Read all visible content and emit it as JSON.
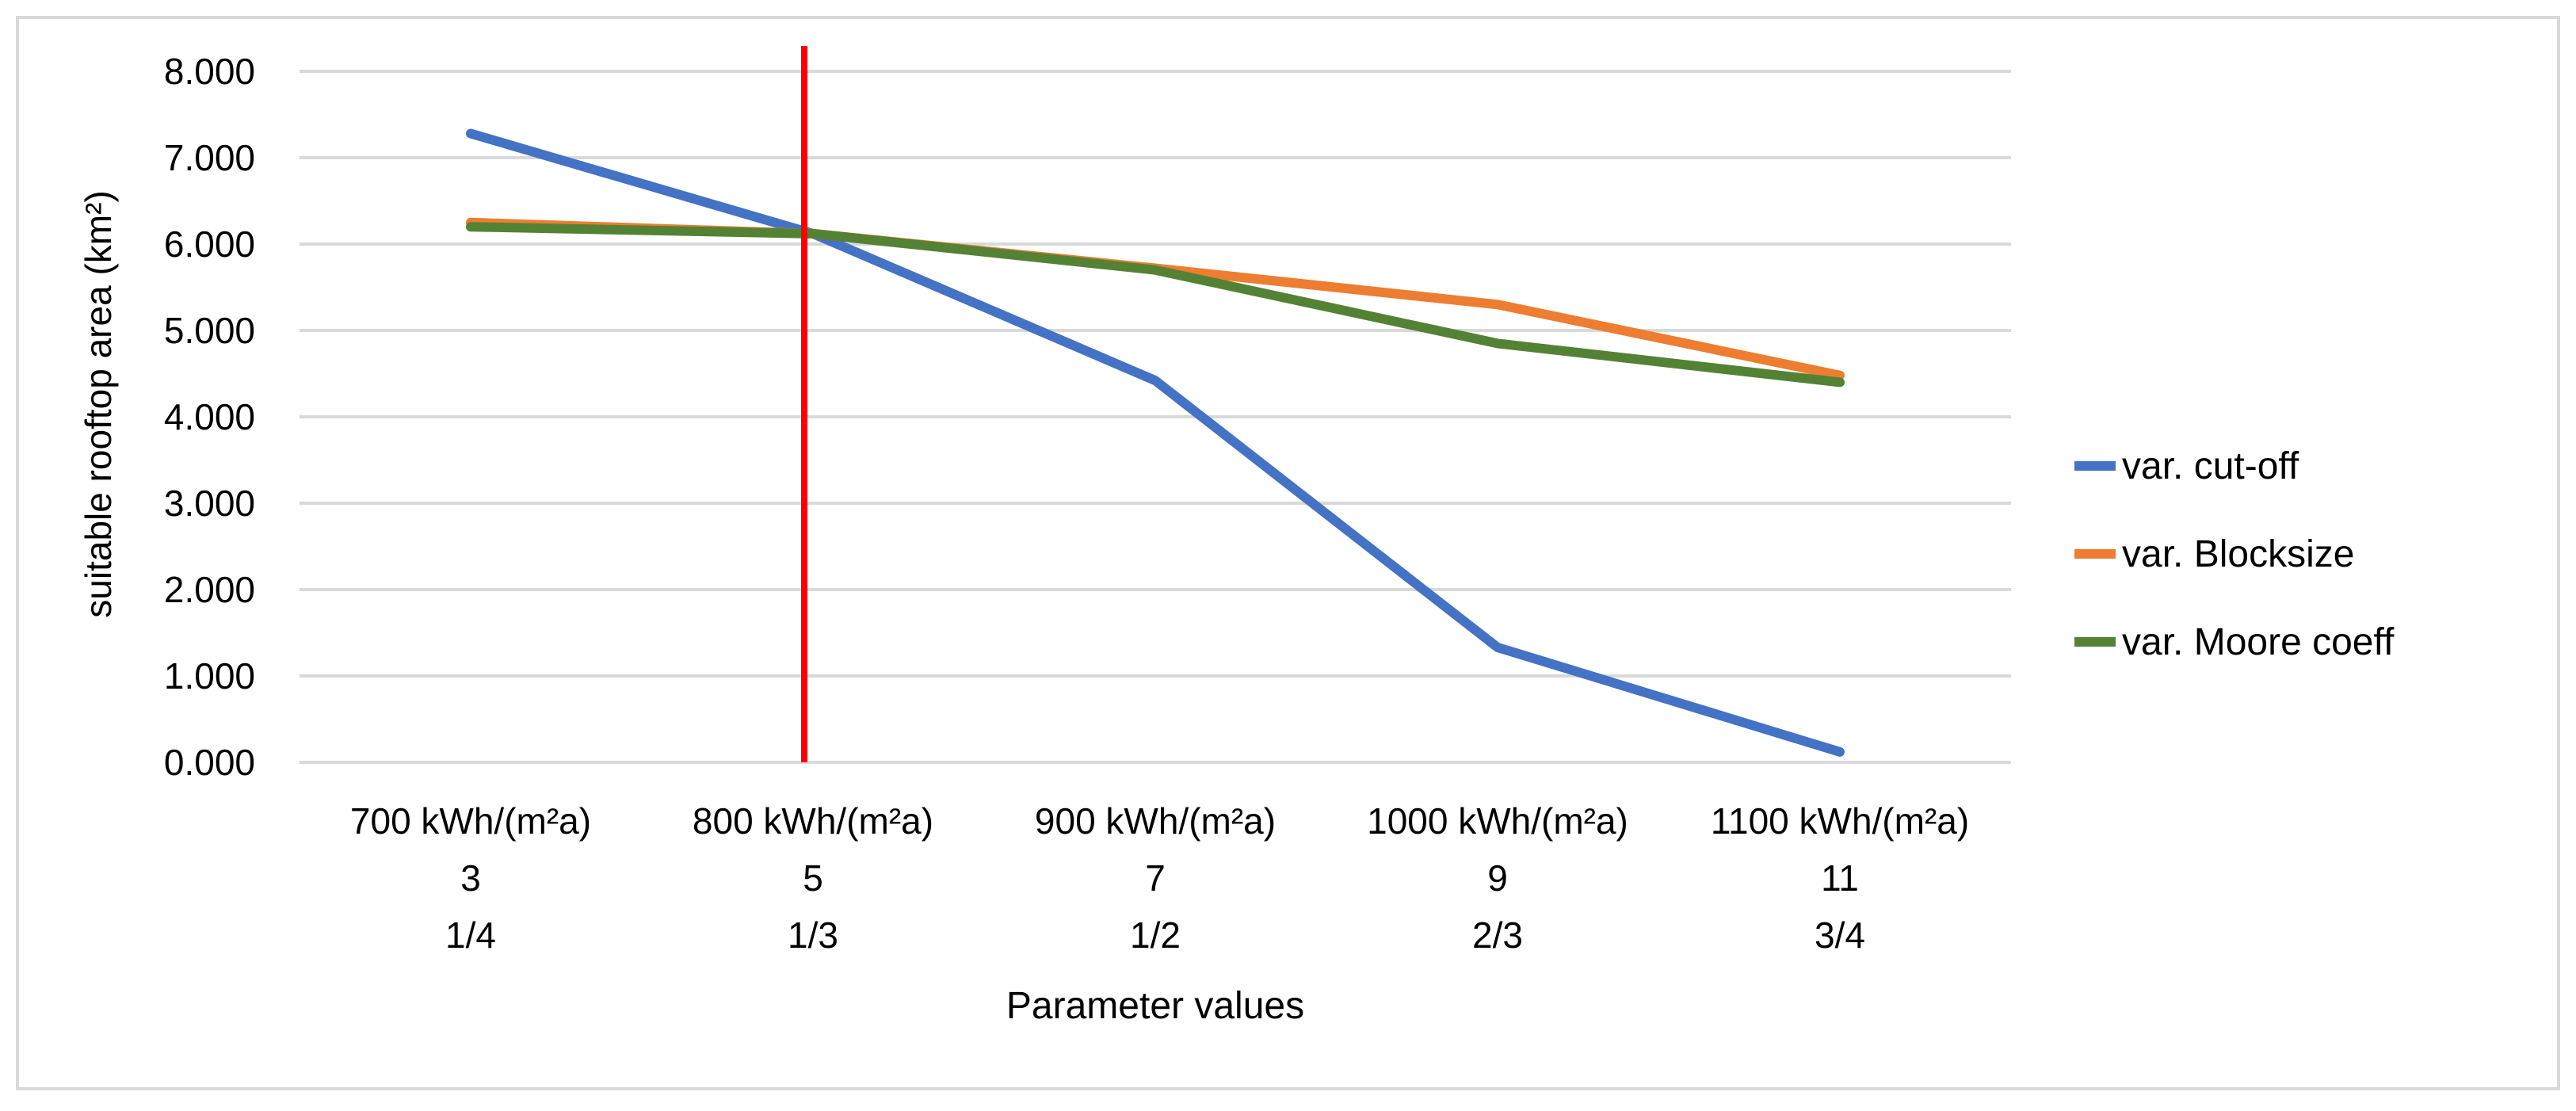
{
  "chart_data": {
    "type": "line",
    "title": "",
    "xlabel": "Parameter values",
    "ylabel": "suitable rooftop area (km²)",
    "ylim": [
      0,
      8
    ],
    "yticks": [
      "0.000",
      "1.000",
      "2.000",
      "3.000",
      "4.000",
      "5.000",
      "6.000",
      "7.000",
      "8.000"
    ],
    "grid": true,
    "legend_position": "right",
    "categories": [
      [
        "700 kWh/(m²a)",
        "3",
        "1/4"
      ],
      [
        "800 kWh/(m²a)",
        "5",
        "1/3"
      ],
      [
        "900 kWh/(m²a)",
        "7",
        "1/2"
      ],
      [
        "1000 kWh/(m²a)",
        "9",
        "2/3"
      ],
      [
        "1100 kWh/(m²a)",
        "11",
        "3/4"
      ]
    ],
    "series": [
      {
        "name": "var. cut-off",
        "color": "#4472C4",
        "values": [
          7.28,
          6.12,
          4.42,
          1.33,
          0.12
        ]
      },
      {
        "name": "var. Blocksize",
        "color": "#ED7D31",
        "values": [
          6.25,
          6.12,
          5.72,
          5.3,
          4.48
        ]
      },
      {
        "name": "var. Moore coeff",
        "color": "#548235",
        "values": [
          6.2,
          6.12,
          5.7,
          4.85,
          4.4
        ]
      }
    ],
    "reference_line": {
      "category_index": 1,
      "color": "#FF0000"
    },
    "gridline_color": "#D9D9D9",
    "border_color": "#D9D9D9"
  }
}
